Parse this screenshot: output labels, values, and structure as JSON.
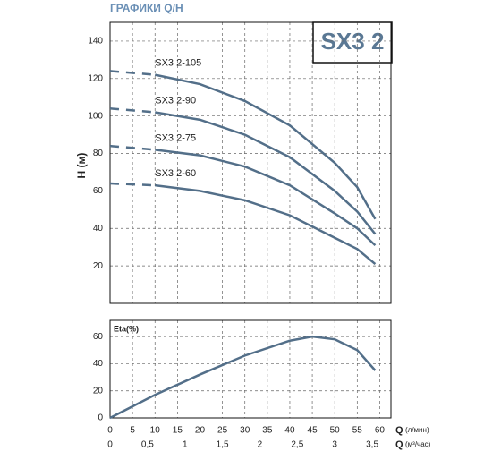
{
  "header": {
    "title": "ГРАФИКИ Q/H",
    "badge": "SX3 2"
  },
  "chart_data": [
    {
      "type": "line",
      "y_label": "H (м)",
      "color": "#536f89",
      "dashed_below": 10,
      "x": [
        0,
        10,
        20,
        30,
        40,
        50,
        55,
        59
      ],
      "xlim": [
        0,
        62.5
      ],
      "xticks": [
        5,
        10,
        15,
        20,
        25,
        30,
        35,
        40,
        45,
        50,
        55,
        60
      ],
      "ylim": [
        0,
        150
      ],
      "yticks": [
        20,
        40,
        60,
        80,
        100,
        120,
        140
      ],
      "grid": true,
      "series": [
        {
          "name": "SX3 2-105",
          "values": [
            124,
            122,
            117,
            108,
            95,
            75,
            62,
            45
          ]
        },
        {
          "name": "SX3 2-90",
          "values": [
            104,
            102,
            98,
            90,
            78,
            60,
            49,
            37
          ]
        },
        {
          "name": "SX3 2-75",
          "values": [
            84,
            82,
            79,
            73,
            63,
            48,
            40,
            31
          ]
        },
        {
          "name": "SX3 2-60",
          "values": [
            64,
            63,
            60,
            55,
            47,
            35,
            29,
            21
          ]
        }
      ]
    },
    {
      "type": "line",
      "y_label": "Eta(%)",
      "color": "#536f89",
      "x": [
        0,
        10,
        20,
        30,
        40,
        45,
        50,
        55,
        59
      ],
      "values": [
        0,
        17,
        32,
        46,
        57,
        60,
        58,
        50,
        35
      ],
      "xlim": [
        0,
        62.5
      ],
      "xticks": [
        0,
        5,
        10,
        15,
        20,
        25,
        30,
        35,
        40,
        45,
        50,
        55,
        60
      ],
      "x_label": "Q",
      "x_unit": "(л/мин)",
      "ylim": [
        0,
        72
      ],
      "yticks": [
        0,
        20,
        40,
        60
      ],
      "grid": true,
      "x2lim": [
        0,
        3.75
      ],
      "x2ticks": [
        0,
        {
          "value": 0.5,
          "label": "0,5"
        },
        1,
        {
          "value": 1.5,
          "label": "1,5"
        },
        2,
        {
          "value": 2.5,
          "label": "2,5"
        },
        3,
        {
          "value": 3.5,
          "label": "3,5"
        }
      ],
      "x2_label": "Q",
      "x2_unit": "(м³/час)"
    }
  ]
}
